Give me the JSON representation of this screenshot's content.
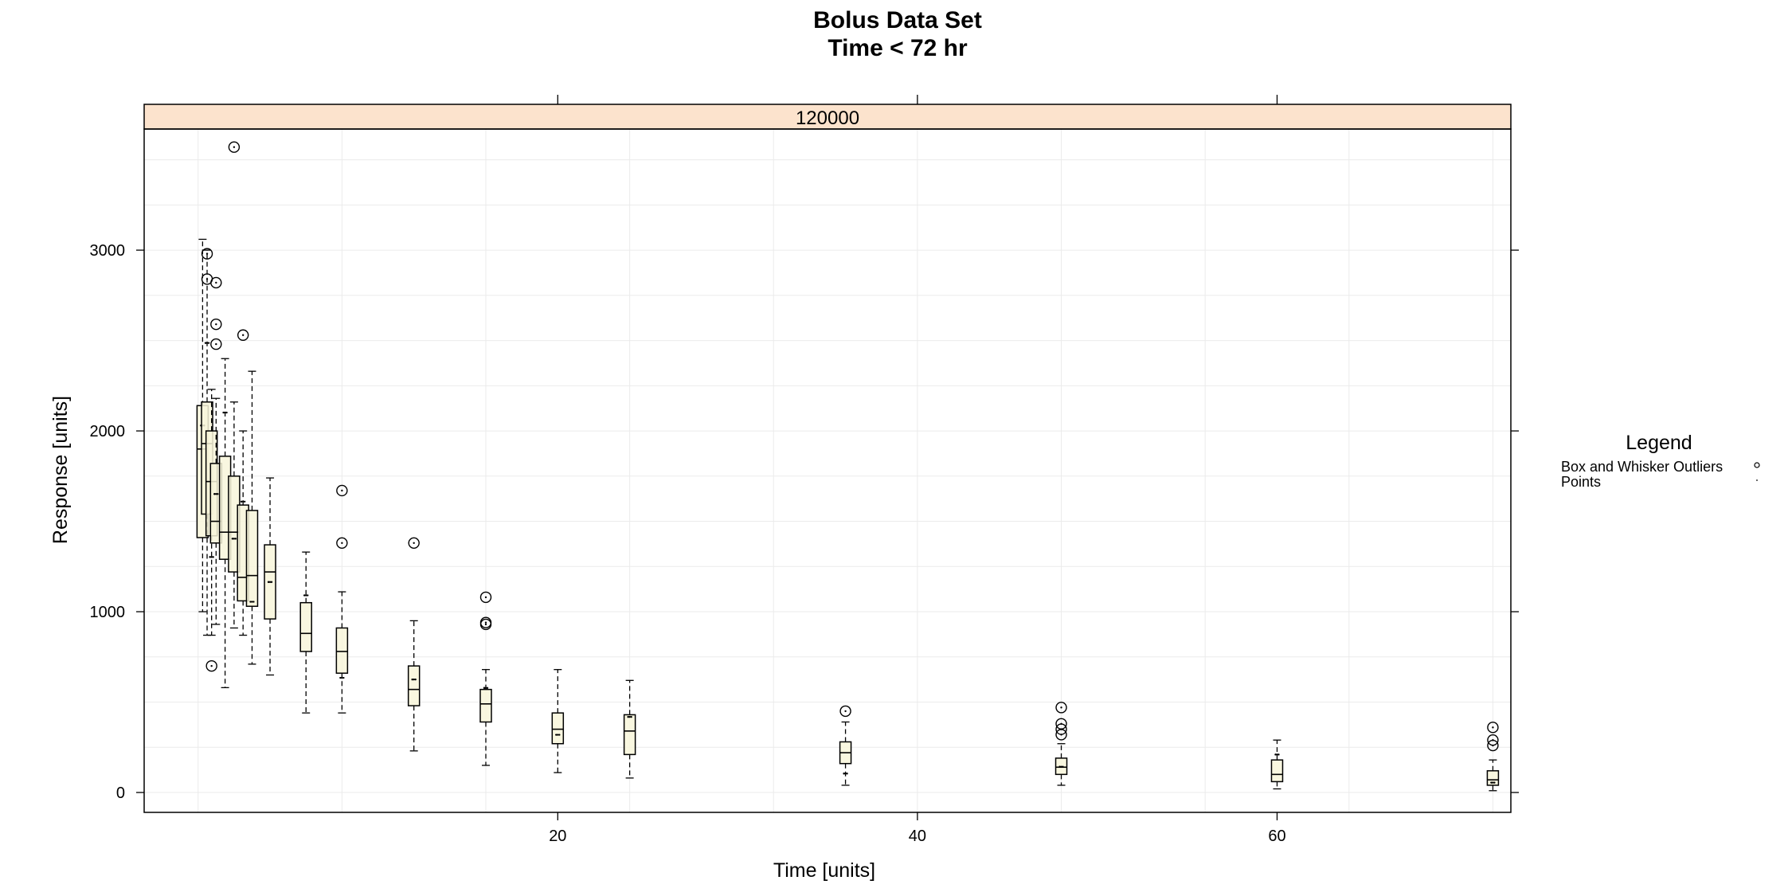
{
  "chart_data": {
    "type": "box",
    "title": "Bolus Data Set",
    "subtitle": "Time < 72 hr",
    "xlabel": "Time [units]",
    "ylabel": "Response [units]",
    "panel_label": "120000",
    "xlim": [
      -3,
      73
    ],
    "ylim": [
      -110,
      3670
    ],
    "x_ticks": [
      20,
      40,
      60
    ],
    "y_ticks": [
      0,
      1000,
      2000,
      3000
    ],
    "grid": true,
    "legend_position": "right",
    "legend": {
      "title": "Legend",
      "items": [
        {
          "label": "Box and Whisker Outliers",
          "symbol": "circle"
        },
        {
          "label": "Points",
          "symbol": "dot"
        }
      ]
    },
    "colors": {
      "strip": "#fce3cd",
      "box_fill": "#f8f6da",
      "grid": "#ebebeb",
      "frame": "#000000"
    },
    "boxes": [
      {
        "x": 0.25,
        "whisker_low": 1000,
        "q1": 1410,
        "median": 1900,
        "q3": 2140,
        "whisker_high": 3060,
        "outliers": []
      },
      {
        "x": 0.5,
        "whisker_low": 870,
        "q1": 1540,
        "median": 1930,
        "q3": 2160,
        "whisker_high": 3000,
        "outliers": [
          2980,
          2840
        ]
      },
      {
        "x": 0.75,
        "whisker_low": 870,
        "q1": 1420,
        "median": 1720,
        "q3": 2000,
        "whisker_high": 2230,
        "outliers": [
          700
        ]
      },
      {
        "x": 1,
        "whisker_low": 930,
        "q1": 1380,
        "median": 1500,
        "q3": 1820,
        "whisker_high": 2180,
        "outliers": [
          2820,
          2590,
          2480
        ]
      },
      {
        "x": 1.5,
        "whisker_low": 580,
        "q1": 1290,
        "median": 1440,
        "q3": 1860,
        "whisker_high": 2400,
        "outliers": []
      },
      {
        "x": 2,
        "whisker_low": 910,
        "q1": 1220,
        "median": 1440,
        "q3": 1750,
        "whisker_high": 2160,
        "outliers": [
          3570
        ]
      },
      {
        "x": 2.5,
        "whisker_low": 870,
        "q1": 1060,
        "median": 1190,
        "q3": 1590,
        "whisker_high": 2000,
        "outliers": [
          2530
        ]
      },
      {
        "x": 3,
        "whisker_low": 710,
        "q1": 1030,
        "median": 1200,
        "q3": 1560,
        "whisker_high": 2330,
        "outliers": []
      },
      {
        "x": 4,
        "whisker_low": 650,
        "q1": 960,
        "median": 1220,
        "q3": 1370,
        "whisker_high": 1740,
        "outliers": []
      },
      {
        "x": 6,
        "whisker_low": 440,
        "q1": 780,
        "median": 880,
        "q3": 1050,
        "whisker_high": 1330,
        "outliers": []
      },
      {
        "x": 8,
        "whisker_low": 440,
        "q1": 660,
        "median": 780,
        "q3": 910,
        "whisker_high": 1110,
        "outliers": [
          1670,
          1380
        ]
      },
      {
        "x": 12,
        "whisker_low": 230,
        "q1": 480,
        "median": 570,
        "q3": 700,
        "whisker_high": 950,
        "outliers": [
          1380
        ]
      },
      {
        "x": 16,
        "whisker_low": 150,
        "q1": 390,
        "median": 490,
        "q3": 570,
        "whisker_high": 680,
        "outliers": [
          1080,
          940,
          930
        ]
      },
      {
        "x": 20,
        "whisker_low": 110,
        "q1": 270,
        "median": 350,
        "q3": 440,
        "whisker_high": 680,
        "outliers": []
      },
      {
        "x": 24,
        "whisker_low": 80,
        "q1": 210,
        "median": 340,
        "q3": 430,
        "whisker_high": 620,
        "outliers": []
      },
      {
        "x": 36,
        "whisker_low": 40,
        "q1": 160,
        "median": 220,
        "q3": 280,
        "whisker_high": 390,
        "outliers": [
          450
        ]
      },
      {
        "x": 48,
        "whisker_low": 40,
        "q1": 100,
        "median": 140,
        "q3": 190,
        "whisker_high": 270,
        "outliers": [
          470,
          380,
          350,
          320
        ]
      },
      {
        "x": 60,
        "whisker_low": 20,
        "q1": 60,
        "median": 100,
        "q3": 180,
        "whisker_high": 290,
        "outliers": []
      },
      {
        "x": 72,
        "whisker_low": 10,
        "q1": 40,
        "median": 70,
        "q3": 120,
        "whisker_high": 180,
        "outliers": [
          360,
          290,
          260
        ]
      }
    ]
  }
}
